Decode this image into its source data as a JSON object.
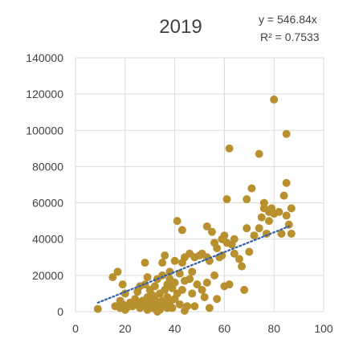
{
  "chart_data": {
    "type": "scatter",
    "title": "2019",
    "xlabel": "",
    "ylabel": "",
    "xlim": [
      0,
      100
    ],
    "ylim": [
      0,
      140000
    ],
    "x_ticks": [
      0,
      20,
      40,
      60,
      80,
      100
    ],
    "y_ticks": [
      0,
      20000,
      40000,
      60000,
      80000,
      100000,
      120000,
      140000
    ],
    "grid": true,
    "marker_color": "#B8912E",
    "trendline": {
      "type": "linear-through-origin",
      "slope": 546.84,
      "x_range": [
        9,
        86
      ],
      "color": "#2E5FA8",
      "style": "dotted",
      "equation_label": "y = 546.84x",
      "r2_label": "R² = 0.7533"
    },
    "series": [
      {
        "points": [
          [
            9,
            1500
          ],
          [
            15,
            19000
          ],
          [
            17,
            22000
          ],
          [
            16,
            3000
          ],
          [
            18,
            2000
          ],
          [
            18,
            6000
          ],
          [
            19,
            4000
          ],
          [
            20,
            1000
          ],
          [
            21,
            2500
          ],
          [
            19,
            15000
          ],
          [
            20,
            10000
          ],
          [
            22,
            5000
          ],
          [
            23,
            3000
          ],
          [
            24,
            7000
          ],
          [
            25,
            4000
          ],
          [
            25,
            11000
          ],
          [
            26,
            2000
          ],
          [
            26,
            14000
          ],
          [
            27,
            6000
          ],
          [
            28,
            15000
          ],
          [
            28,
            3000
          ],
          [
            28,
            27000
          ],
          [
            29,
            8000
          ],
          [
            29,
            19000
          ],
          [
            30,
            5000
          ],
          [
            30,
            12000
          ],
          [
            31,
            2000
          ],
          [
            31,
            9000
          ],
          [
            32,
            7000
          ],
          [
            32,
            14000
          ],
          [
            33,
            4000
          ],
          [
            33,
            18000
          ],
          [
            34,
            10000
          ],
          [
            34,
            1000
          ],
          [
            35,
            6000
          ],
          [
            35,
            20000
          ],
          [
            35,
            27000
          ],
          [
            36,
            3000
          ],
          [
            36,
            12000
          ],
          [
            36,
            31000
          ],
          [
            37,
            15000
          ],
          [
            37,
            8000
          ],
          [
            38,
            5000
          ],
          [
            38,
            18000
          ],
          [
            38,
            22000
          ],
          [
            39,
            2000
          ],
          [
            39,
            13000
          ],
          [
            40,
            7000
          ],
          [
            40,
            28000
          ],
          [
            40,
            16000
          ],
          [
            41,
            10000
          ],
          [
            41,
            50000
          ],
          [
            42,
            4000
          ],
          [
            42,
            21000
          ],
          [
            43,
            12000
          ],
          [
            43,
            27000
          ],
          [
            43,
            45000
          ],
          [
            44,
            17000
          ],
          [
            44,
            30000
          ],
          [
            45,
            3000
          ],
          [
            46,
            18000
          ],
          [
            46,
            32000
          ],
          [
            47,
            10000
          ],
          [
            47,
            22000
          ],
          [
            48,
            30000
          ],
          [
            49,
            15000
          ],
          [
            50,
            31000
          ],
          [
            51,
            32000
          ],
          [
            51,
            12000
          ],
          [
            52,
            8000
          ],
          [
            53,
            16000
          ],
          [
            53,
            30000
          ],
          [
            53,
            47000
          ],
          [
            54,
            2000
          ],
          [
            54,
            28000
          ],
          [
            55,
            44000
          ],
          [
            56,
            38000
          ],
          [
            56,
            20000
          ],
          [
            57,
            7000
          ],
          [
            57,
            35000
          ],
          [
            58,
            30000
          ],
          [
            59,
            31000
          ],
          [
            59,
            40000
          ],
          [
            60,
            42000
          ],
          [
            60,
            14000
          ],
          [
            61,
            62000
          ],
          [
            61,
            38000
          ],
          [
            62,
            90000
          ],
          [
            62,
            15000
          ],
          [
            63,
            37000
          ],
          [
            64,
            32000
          ],
          [
            64,
            40000
          ],
          [
            66,
            29000
          ],
          [
            67,
            25000
          ],
          [
            68,
            12000
          ],
          [
            69,
            46000
          ],
          [
            69,
            62000
          ],
          [
            70,
            33000
          ],
          [
            71,
            68000
          ],
          [
            72,
            42000
          ],
          [
            74,
            87000
          ],
          [
            74,
            46000
          ],
          [
            75,
            52000
          ],
          [
            76,
            60000
          ],
          [
            76,
            57000
          ],
          [
            77,
            43000
          ],
          [
            78,
            55000
          ],
          [
            78,
            50000
          ],
          [
            79,
            57000
          ],
          [
            80,
            54000
          ],
          [
            80,
            117000
          ],
          [
            82,
            55000
          ],
          [
            83,
            43000
          ],
          [
            84,
            64000
          ],
          [
            85,
            71000
          ],
          [
            85,
            98000
          ],
          [
            85,
            53000
          ],
          [
            86,
            48000
          ],
          [
            87,
            43000
          ],
          [
            87,
            57000
          ],
          [
            29,
            1000
          ],
          [
            33,
            0
          ],
          [
            37,
            2000
          ],
          [
            44,
            500
          ],
          [
            48,
            3000
          ]
        ]
      }
    ]
  }
}
